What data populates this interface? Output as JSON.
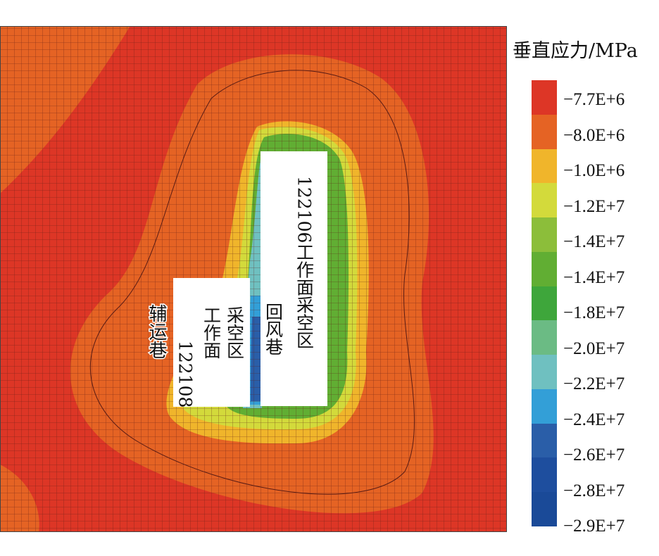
{
  "chart_data": {
    "type": "heatmap",
    "title": "",
    "colorbar": {
      "title": "垂直应力/MPa",
      "levels": [
        {
          "label": "−7.7E+6",
          "color": "#dd3626"
        },
        {
          "label": "−8.0E+6",
          "color": "#e56324"
        },
        {
          "label": "−1.0E+6",
          "color": "#f0b52b"
        },
        {
          "label": "−1.2E+7",
          "color": "#d3da3b"
        },
        {
          "label": "−1.4E+7",
          "color": "#8cbe3a"
        },
        {
          "label": "−1.4E+7",
          "color": "#61ae33"
        },
        {
          "label": "−1.8E+7",
          "color": "#3ea63b"
        },
        {
          "label": "−2.0E+7",
          "color": "#6bbb84"
        },
        {
          "label": "−2.2E+7",
          "color": "#6fc0c0"
        },
        {
          "label": "−2.4E+7",
          "color": "#339fd7"
        },
        {
          "label": "−2.6E+7",
          "color": "#2a5ea8"
        },
        {
          "label": "−2.8E+7",
          "color": "#1e4e9e"
        },
        {
          "label": "−2.9E+7",
          "color": "#1a4a98"
        }
      ]
    },
    "annotations": [
      {
        "id": "left-box",
        "text": [
          "122108",
          "工作面",
          "采空区"
        ]
      },
      {
        "id": "right-box",
        "text": [
          "回风巷",
          "122106工作面采空区"
        ]
      },
      {
        "id": "side-label",
        "text": "辅运巷"
      }
    ],
    "grid": true
  }
}
